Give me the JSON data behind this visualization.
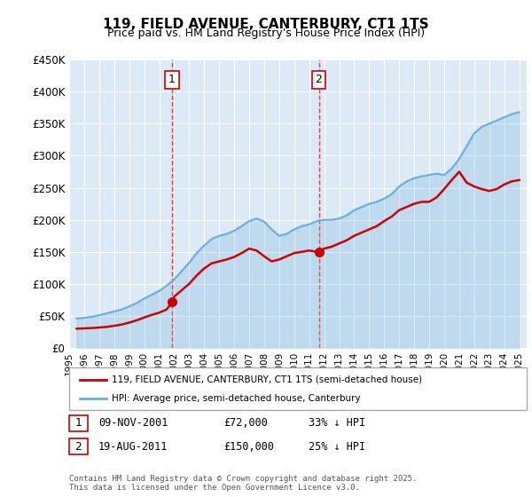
{
  "title": "119, FIELD AVENUE, CANTERBURY, CT1 1TS",
  "subtitle": "Price paid vs. HM Land Registry's House Price Index (HPI)",
  "ylim": [
    0,
    450000
  ],
  "yticks": [
    0,
    50000,
    100000,
    150000,
    200000,
    250000,
    300000,
    350000,
    400000,
    450000
  ],
  "ytick_labels": [
    "£0",
    "£50K",
    "£100K",
    "£150K",
    "£200K",
    "£250K",
    "£300K",
    "£350K",
    "£400K",
    "£450K"
  ],
  "background_color": "#dce9f7",
  "plot_bg_color": "#dce9f7",
  "hpi_color": "#6baed6",
  "price_color": "#cc0000",
  "sale1_date": "09-NOV-2001",
  "sale1_price": 72000,
  "sale1_label": "33% ↓ HPI",
  "sale2_date": "19-AUG-2011",
  "sale2_price": 150000,
  "sale2_label": "25% ↓ HPI",
  "sale1_x": 2001.86,
  "sale2_x": 2011.64,
  "legend_line1": "119, FIELD AVENUE, CANTERBURY, CT1 1TS (semi-detached house)",
  "legend_line2": "HPI: Average price, semi-detached house, Canterbury",
  "footer": "Contains HM Land Registry data © Crown copyright and database right 2025.\nThis data is licensed under the Open Government Licence v3.0.",
  "hpi_years": [
    1995.5,
    1996,
    1996.5,
    1997,
    1997.5,
    1998,
    1998.5,
    1999,
    1999.5,
    2000,
    2000.5,
    2001,
    2001.5,
    2002,
    2002.5,
    2003,
    2003.5,
    2004,
    2004.5,
    2005,
    2005.5,
    2006,
    2006.5,
    2007,
    2007.5,
    2008,
    2008.5,
    2009,
    2009.5,
    2010,
    2010.5,
    2011,
    2011.5,
    2012,
    2012.5,
    2013,
    2013.5,
    2014,
    2014.5,
    2015,
    2015.5,
    2016,
    2016.5,
    2017,
    2017.5,
    2018,
    2018.5,
    2019,
    2019.5,
    2020,
    2020.5,
    2021,
    2021.5,
    2022,
    2022.5,
    2023,
    2023.5,
    2024,
    2024.5,
    2025
  ],
  "hpi_values": [
    46000,
    47000,
    48500,
    51000,
    54000,
    57000,
    60000,
    65000,
    70000,
    77000,
    83000,
    89000,
    97000,
    107000,
    120000,
    133000,
    148000,
    160000,
    170000,
    175000,
    178000,
    183000,
    190000,
    198000,
    202000,
    197000,
    185000,
    175000,
    178000,
    185000,
    190000,
    193000,
    198000,
    200000,
    200000,
    202000,
    207000,
    215000,
    220000,
    225000,
    228000,
    233000,
    240000,
    252000,
    260000,
    265000,
    268000,
    270000,
    272000,
    270000,
    280000,
    295000,
    315000,
    335000,
    345000,
    350000,
    355000,
    360000,
    365000,
    368000
  ],
  "price_years": [
    1995.5,
    1996,
    1996.5,
    1997,
    1997.5,
    1998,
    1998.5,
    1999,
    1999.5,
    2000,
    2000.5,
    2001,
    2001.5,
    2001.86,
    2002,
    2002.5,
    2003,
    2003.5,
    2004,
    2004.5,
    2005,
    2005.5,
    2006,
    2006.5,
    2007,
    2007.5,
    2008,
    2008.5,
    2009,
    2009.5,
    2010,
    2010.5,
    2011,
    2011.5,
    2011.64,
    2012,
    2012.5,
    2013,
    2013.5,
    2014,
    2014.5,
    2015,
    2015.5,
    2016,
    2016.5,
    2017,
    2017.5,
    2018,
    2018.5,
    2019,
    2019.5,
    2020,
    2020.5,
    2021,
    2021.5,
    2022,
    2022.5,
    2023,
    2023.5,
    2024,
    2024.5,
    2025
  ],
  "price_values": [
    30000,
    30500,
    31000,
    31800,
    32800,
    34500,
    36500,
    39500,
    43000,
    47500,
    51500,
    55000,
    60000,
    72000,
    80000,
    90000,
    100000,
    113000,
    124000,
    132000,
    135000,
    138000,
    142000,
    148000,
    155000,
    152000,
    143000,
    135000,
    138000,
    143000,
    148000,
    150000,
    152000,
    150000,
    150000,
    155000,
    158000,
    163000,
    168000,
    175000,
    180000,
    185000,
    190000,
    198000,
    205000,
    215000,
    220000,
    225000,
    228000,
    228000,
    235000,
    248000,
    262000,
    275000,
    258000,
    252000,
    248000,
    245000,
    248000,
    255000,
    260000,
    262000
  ],
  "xtick_years": [
    "1995",
    "1996",
    "1997",
    "1998",
    "1999",
    "2000",
    "2001",
    "2002",
    "2003",
    "2004",
    "2005",
    "2006",
    "2007",
    "2008",
    "2009",
    "2010",
    "2011",
    "2012",
    "2013",
    "2014",
    "2015",
    "2016",
    "2017",
    "2018",
    "2019",
    "2020",
    "2021",
    "2022",
    "2023",
    "2024",
    "2025"
  ],
  "xlim": [
    1995,
    2025.5
  ]
}
